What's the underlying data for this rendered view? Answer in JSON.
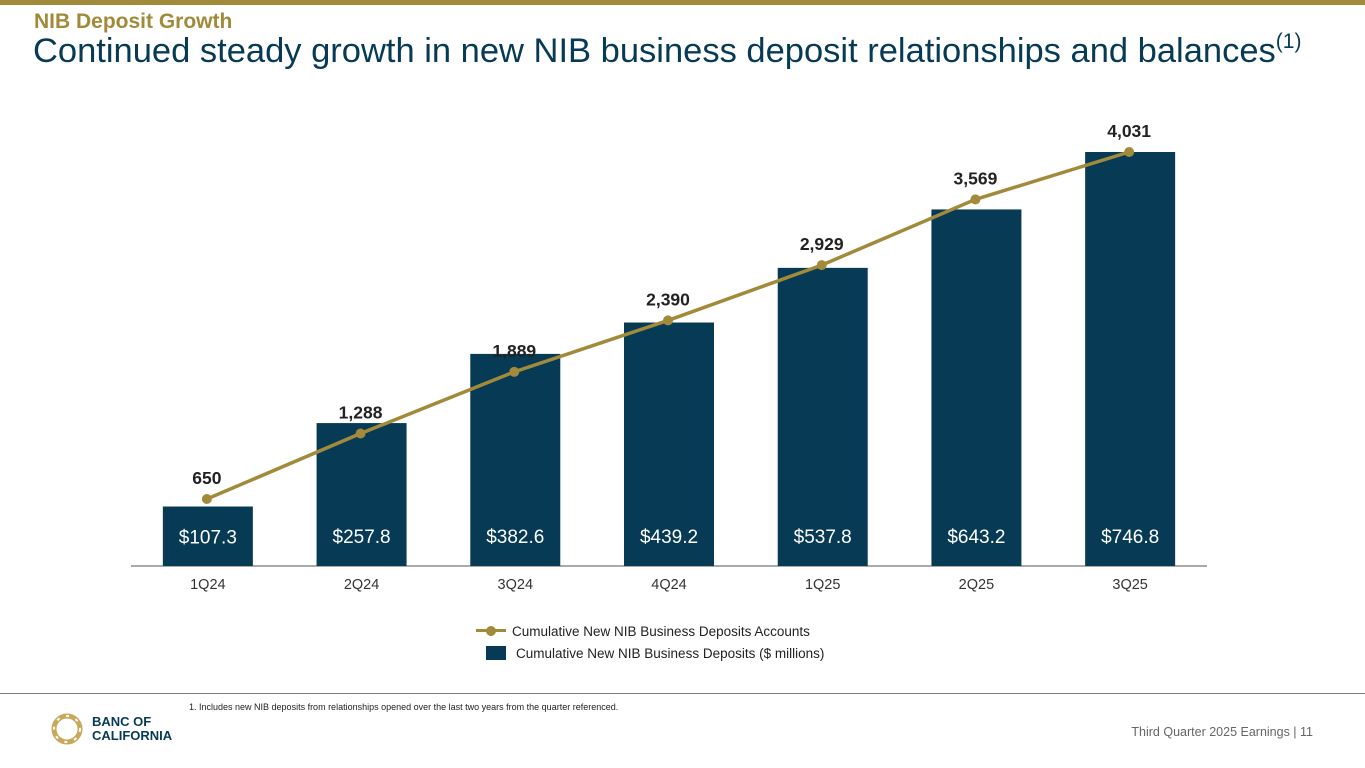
{
  "header": {
    "kicker": "NIB Deposit Growth",
    "headline": "Continued steady growth in new NIB business deposit relationships and balances",
    "headline_note": "(1)"
  },
  "colors": {
    "bar": "#063a55",
    "line": "#a28a3b",
    "accent": "#a28a3b"
  },
  "chart_data": {
    "type": "bar",
    "categories": [
      "1Q24",
      "2Q24",
      "3Q24",
      "4Q24",
      "1Q25",
      "2Q25",
      "3Q25"
    ],
    "series": [
      {
        "name": "Cumulative New NIB Business Deposits ($ millions)",
        "type": "bar",
        "values": [
          107.3,
          257.8,
          382.6,
          439.2,
          537.8,
          643.2,
          746.8
        ],
        "labels": [
          "$107.3",
          "$257.8",
          "$382.6",
          "$439.2",
          "$537.8",
          "$643.2",
          "$746.8"
        ]
      },
      {
        "name": "Cumulative New NIB Business Deposits Accounts",
        "type": "line",
        "values": [
          650,
          1288,
          1889,
          2390,
          2929,
          3569,
          4031
        ],
        "labels": [
          "650",
          "1,288",
          "1,889",
          "2,390",
          "2,929",
          "3,569",
          "4,031"
        ]
      }
    ],
    "legend_position": "bottom"
  },
  "legend": {
    "line_label": "Cumulative New NIB Business Deposits Accounts",
    "bar_label": "Cumulative New NIB Business Deposits ($ millions)"
  },
  "footnote": "1.  Includes new NIB deposits from relationships opened over the last two years from the quarter referenced.",
  "footer": {
    "text": "Third Quarter 2025 Earnings |  11"
  },
  "logo": {
    "name": "BANC OF\nCALIFORNIA",
    "icon": "banc-of-california-ring-logo"
  }
}
